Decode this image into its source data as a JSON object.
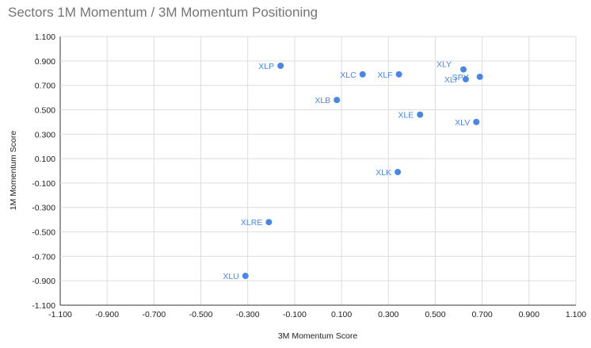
{
  "chart_data": {
    "type": "scatter",
    "title": "Sectors 1M Momentum / 3M Momentum Positioning",
    "xlabel": "3M Momentum Score",
    "ylabel": "1M Momentum Score",
    "xlim": [
      -1.1,
      1.1
    ],
    "ylim": [
      -1.1,
      1.1
    ],
    "x_ticks": [
      "-1.100",
      "-0.900",
      "-0.700",
      "-0.500",
      "-0.300",
      "-0.100",
      "0.100",
      "0.300",
      "0.500",
      "0.700",
      "0.900",
      "1.100"
    ],
    "y_ticks": [
      "1.100",
      "0.900",
      "0.700",
      "0.500",
      "0.300",
      "0.100",
      "-0.100",
      "-0.300",
      "-0.500",
      "-0.700",
      "-0.900",
      "-1.100"
    ],
    "grid": true,
    "point_color": "#4a86e8",
    "points": [
      {
        "label": "XLP",
        "x": -0.16,
        "y": 0.86
      },
      {
        "label": "XLC",
        "x": 0.19,
        "y": 0.79
      },
      {
        "label": "XLF",
        "x": 0.345,
        "y": 0.79
      },
      {
        "label": "XLB",
        "x": 0.08,
        "y": 0.58
      },
      {
        "label": "XLE",
        "x": 0.435,
        "y": 0.46
      },
      {
        "label": "XLY",
        "x": 0.62,
        "y": 0.83
      },
      {
        "label": "XLI",
        "x": 0.63,
        "y": 0.75
      },
      {
        "label": "SPY",
        "x": 0.69,
        "y": 0.77
      },
      {
        "label": "XLV",
        "x": 0.675,
        "y": 0.4
      },
      {
        "label": "XLK",
        "x": 0.34,
        "y": -0.01
      },
      {
        "label": "XLRE",
        "x": -0.21,
        "y": -0.42
      },
      {
        "label": "XLU",
        "x": -0.31,
        "y": -0.86
      }
    ]
  }
}
